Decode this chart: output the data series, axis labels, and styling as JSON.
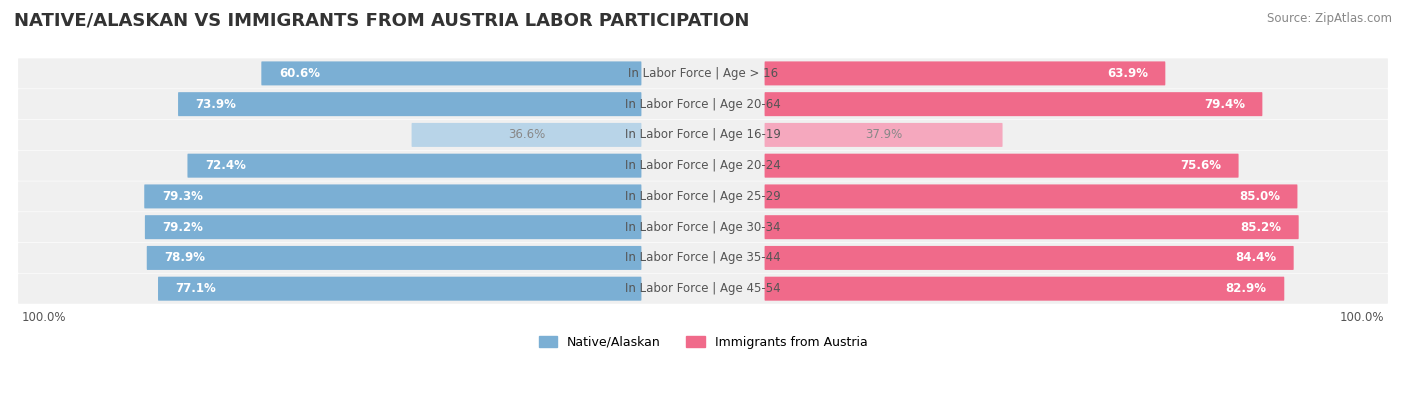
{
  "title": "NATIVE/ALASKAN VS IMMIGRANTS FROM AUSTRIA LABOR PARTICIPATION",
  "source": "Source: ZipAtlas.com",
  "categories": [
    "In Labor Force | Age > 16",
    "In Labor Force | Age 20-64",
    "In Labor Force | Age 16-19",
    "In Labor Force | Age 20-24",
    "In Labor Force | Age 25-29",
    "In Labor Force | Age 30-34",
    "In Labor Force | Age 35-44",
    "In Labor Force | Age 45-54"
  ],
  "native_values": [
    60.6,
    73.9,
    36.6,
    72.4,
    79.3,
    79.2,
    78.9,
    77.1
  ],
  "immigrant_values": [
    63.9,
    79.4,
    37.9,
    75.6,
    85.0,
    85.2,
    84.4,
    82.9
  ],
  "native_color": "#7BAFD4",
  "native_color_light": "#B8D4E8",
  "immigrant_color": "#F06A8A",
  "immigrant_color_light": "#F5A8BE",
  "row_bg_color": "#F0F0F0",
  "legend_native": "Native/Alaskan",
  "legend_immigrant": "Immigrants from Austria",
  "x_max": 100.0,
  "title_fontsize": 13,
  "label_fontsize": 8.5,
  "value_fontsize": 8.5,
  "legend_fontsize": 9
}
